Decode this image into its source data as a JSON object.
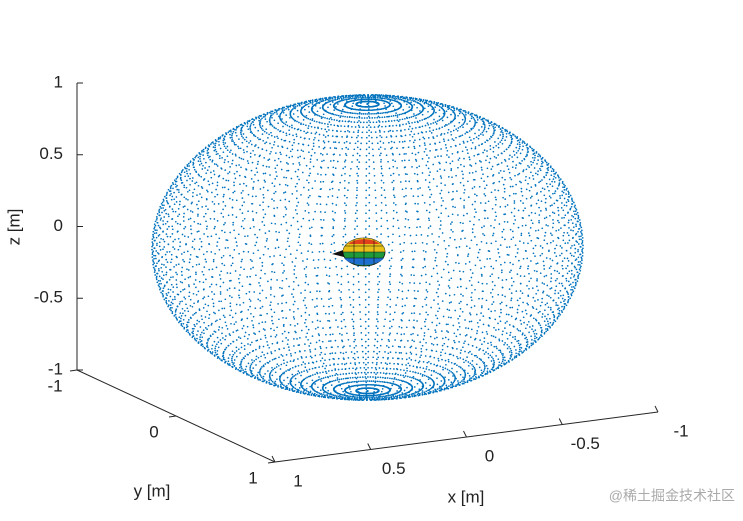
{
  "chart_data": {
    "type": "scatter3d",
    "xlabel": "x [m]",
    "ylabel": "y [m]",
    "zlabel": "z [m]",
    "xlim": [
      -1,
      1
    ],
    "ylim": [
      -1,
      1
    ],
    "zlim": [
      -1,
      1
    ],
    "xticks": [
      -1,
      -0.5,
      0,
      0.5,
      1
    ],
    "yticks": [
      -1,
      0,
      1
    ],
    "zticks": [
      -1,
      -0.5,
      0,
      0.5,
      1
    ],
    "color": "#0072bd"
  },
  "watermark": "@稀土掘金技术社区"
}
